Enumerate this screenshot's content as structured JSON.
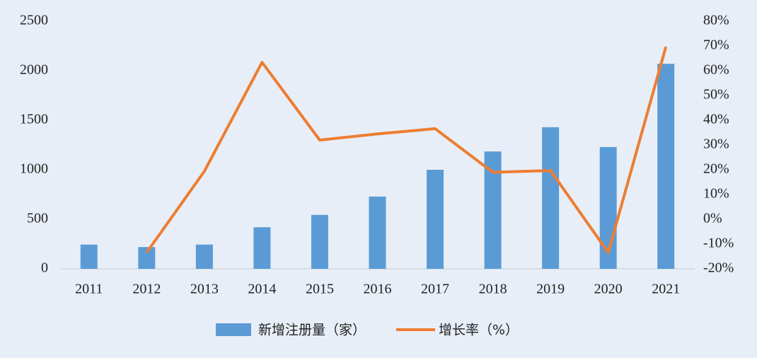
{
  "chart_data": {
    "type": "bar",
    "categories": [
      "2011",
      "2012",
      "2013",
      "2014",
      "2015",
      "2016",
      "2017",
      "2018",
      "2019",
      "2020",
      "2021"
    ],
    "series": [
      {
        "name": "新增注册量（家）",
        "type": "bar",
        "color": "#5b9bd5",
        "values": [
          245,
          220,
          245,
          420,
          545,
          730,
          1000,
          1185,
          1430,
          1230,
          2070
        ]
      },
      {
        "name": "增长率（%）",
        "type": "line",
        "axis": "y2",
        "color": "#ed7d31",
        "values": [
          null,
          -13.4,
          19.4,
          63.4,
          32,
          34.5,
          36.6,
          19,
          19.7,
          -13.4,
          69.7
        ]
      }
    ],
    "ylim": [
      0,
      2500
    ],
    "yticks": [
      0,
      500,
      1000,
      1500,
      2000,
      2500
    ],
    "y2lim": [
      -20,
      80
    ],
    "y2ticks": [
      {
        "value": -20,
        "label": "-20%"
      },
      {
        "value": -10,
        "label": "-10%"
      },
      {
        "value": 0,
        "label": "0%"
      },
      {
        "value": 10,
        "label": "10%"
      },
      {
        "value": 20,
        "label": "20%"
      },
      {
        "value": 30,
        "label": "30%"
      },
      {
        "value": 40,
        "label": "40%"
      },
      {
        "value": 50,
        "label": "50%"
      },
      {
        "value": 60,
        "label": "60%"
      },
      {
        "value": 70,
        "label": "70%"
      },
      {
        "value": 80,
        "label": "80%"
      }
    ],
    "grid": false,
    "legend": "bottom"
  }
}
